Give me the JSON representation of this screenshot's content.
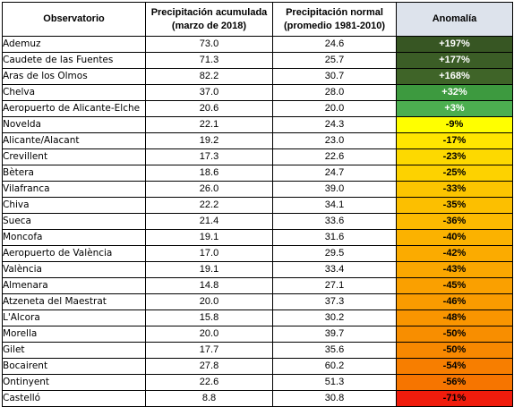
{
  "headers": {
    "station": "Observatorio",
    "accumulated_line1": "Precipitación acumulada",
    "accumulated_line2": "(marzo de 2018)",
    "normal_line1": "Precipitación normal",
    "normal_line2": "(promedio 1981-2010)",
    "anomaly": "Anomalía"
  },
  "colors": {
    "header_bg": "#dde3ec",
    "grid_line": "#000000"
  },
  "rows": [
    {
      "station": "Ademuz",
      "accumulated": "73.0",
      "normal": "24.6",
      "anomaly": "+197%",
      "bg": "#375623",
      "fg": "#ffffff"
    },
    {
      "station": "Caudete de las Fuentes",
      "accumulated": "71.3",
      "normal": "25.7",
      "anomaly": "+177%",
      "bg": "#3b5d26",
      "fg": "#ffffff"
    },
    {
      "station": "Aras de los Olmos",
      "accumulated": "82.2",
      "normal": "30.7",
      "anomaly": "+168%",
      "bg": "#3f6428",
      "fg": "#ffffff"
    },
    {
      "station": "Chelva",
      "accumulated": "37.0",
      "normal": "28.0",
      "anomaly": "+32%",
      "bg": "#3d9a3f",
      "fg": "#ffffff"
    },
    {
      "station": "Aeropuerto de Alicante-Elche",
      "accumulated": "20.6",
      "normal": "20.0",
      "anomaly": "+3%",
      "bg": "#4caf50",
      "fg": "#ffffff"
    },
    {
      "station": "Novelda",
      "accumulated": "22.1",
      "normal": "24.3",
      "anomaly": "-9%",
      "bg": "#ffff00",
      "fg": "#000000"
    },
    {
      "station": "Alicante/Alacant",
      "accumulated": "19.2",
      "normal": "23.0",
      "anomaly": "-17%",
      "bg": "#ffe600",
      "fg": "#000000"
    },
    {
      "station": "Crevillent",
      "accumulated": "17.3",
      "normal": "22.6",
      "anomaly": "-23%",
      "bg": "#fdd900",
      "fg": "#000000"
    },
    {
      "station": "Bètera",
      "accumulated": "18.6",
      "normal": "24.7",
      "anomaly": "-25%",
      "bg": "#fdd200",
      "fg": "#000000"
    },
    {
      "station": "Vilafranca",
      "accumulated": "26.0",
      "normal": "39.0",
      "anomaly": "-33%",
      "bg": "#fcc500",
      "fg": "#000000"
    },
    {
      "station": "Chiva",
      "accumulated": "22.2",
      "normal": "34.1",
      "anomaly": "-35%",
      "bg": "#fcbf00",
      "fg": "#000000"
    },
    {
      "station": "Sueca",
      "accumulated": "21.4",
      "normal": "33.6",
      "anomaly": "-36%",
      "bg": "#fcba00",
      "fg": "#000000"
    },
    {
      "station": "Moncofa",
      "accumulated": "19.1",
      "normal": "31.6",
      "anomaly": "-40%",
      "bg": "#fbb200",
      "fg": "#000000"
    },
    {
      "station": "Aeropuerto de València",
      "accumulated": "17.0",
      "normal": "29.5",
      "anomaly": "-42%",
      "bg": "#fbab00",
      "fg": "#000000"
    },
    {
      "station": "València",
      "accumulated": "19.1",
      "normal": "33.4",
      "anomaly": "-43%",
      "bg": "#faa700",
      "fg": "#000000"
    },
    {
      "station": "Almenara",
      "accumulated": "14.8",
      "normal": "27.1",
      "anomaly": "-45%",
      "bg": "#faa000",
      "fg": "#000000"
    },
    {
      "station": "Atzeneta del Maestrat",
      "accumulated": "20.0",
      "normal": "37.3",
      "anomaly": "-46%",
      "bg": "#f99b00",
      "fg": "#000000"
    },
    {
      "station": "L'Alcora",
      "accumulated": "15.8",
      "normal": "30.2",
      "anomaly": "-48%",
      "bg": "#f99500",
      "fg": "#000000"
    },
    {
      "station": "Morella",
      "accumulated": "20.0",
      "normal": "39.7",
      "anomaly": "-50%",
      "bg": "#f88e00",
      "fg": "#000000"
    },
    {
      "station": "Gilet",
      "accumulated": "17.7",
      "normal": "35.6",
      "anomaly": "-50%",
      "bg": "#f88800",
      "fg": "#000000"
    },
    {
      "station": "Bocairent",
      "accumulated": "27.8",
      "normal": "60.2",
      "anomaly": "-54%",
      "bg": "#f77e00",
      "fg": "#000000"
    },
    {
      "station": "Ontinyent",
      "accumulated": "22.6",
      "normal": "51.3",
      "anomaly": "-56%",
      "bg": "#f67500",
      "fg": "#000000"
    },
    {
      "station": "Castelló",
      "accumulated": "8.8",
      "normal": "30.8",
      "anomaly": "-71%",
      "bg": "#f01c0c",
      "fg": "#000000"
    }
  ]
}
